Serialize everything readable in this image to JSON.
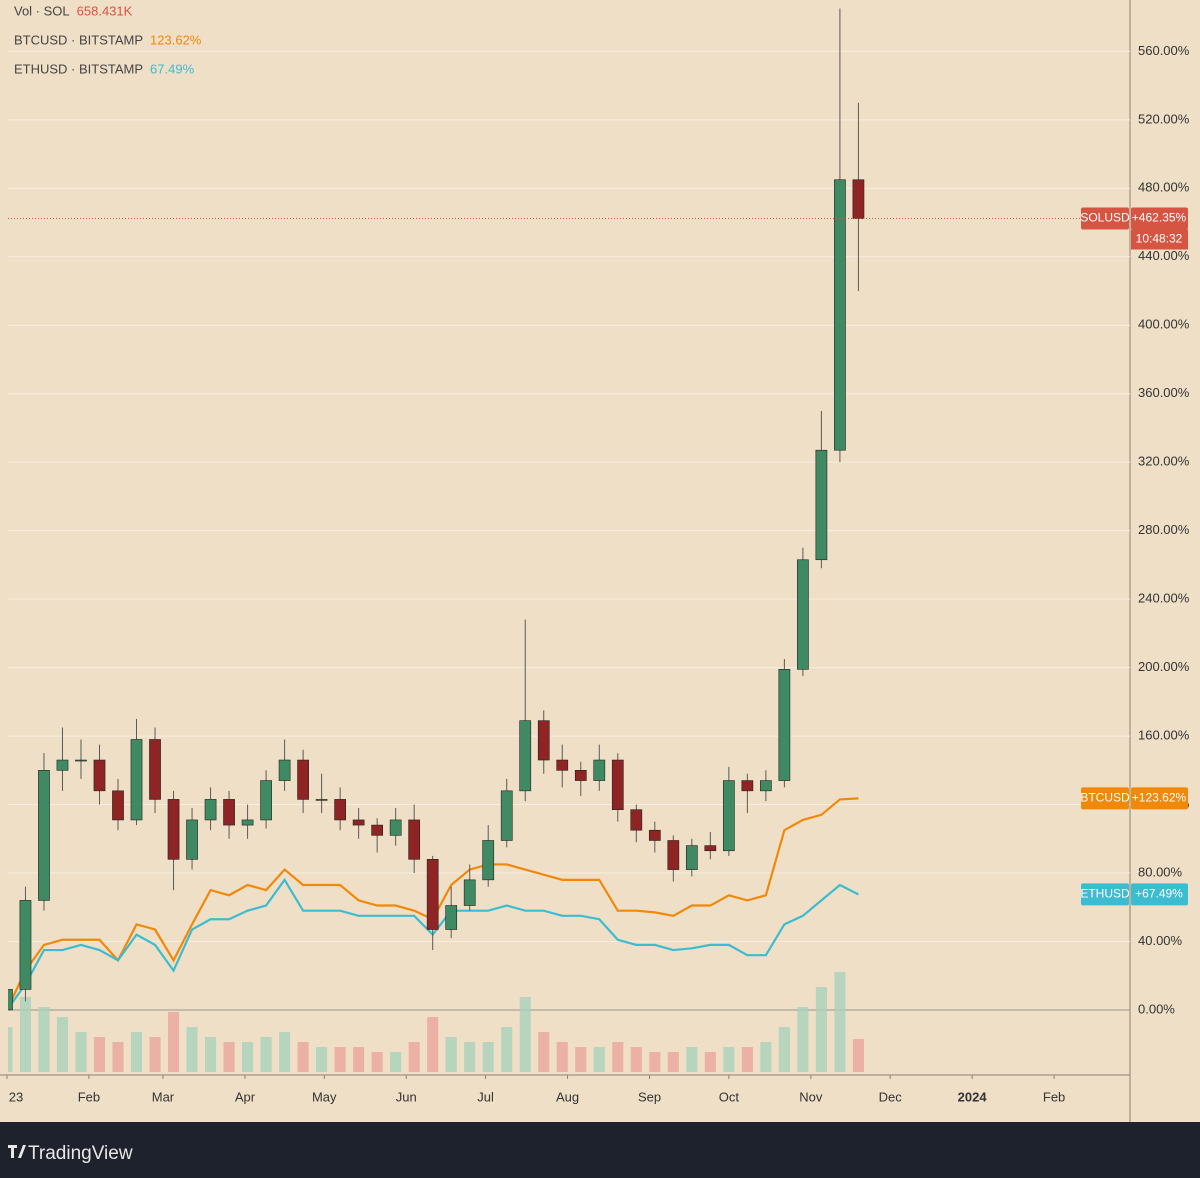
{
  "chart_data": {
    "type": "candlestick",
    "x": [
      0,
      7,
      14,
      21,
      28,
      35,
      42,
      49,
      56,
      63,
      70,
      77,
      84,
      91,
      98,
      105,
      112,
      119,
      126,
      133,
      140,
      147,
      154,
      161,
      168,
      175,
      182,
      189,
      196,
      203,
      210,
      217,
      224,
      231,
      238,
      245,
      252,
      259,
      266,
      273,
      280,
      287,
      294,
      301,
      308,
      315,
      322
    ],
    "xlim": [
      0.4,
      424.7
    ],
    "xticks": [
      {
        "value": 0,
        "label": "23"
      },
      {
        "value": 31,
        "label": "Feb"
      },
      {
        "value": 59,
        "label": "Mar"
      },
      {
        "value": 90,
        "label": "Apr"
      },
      {
        "value": 120,
        "label": "May"
      },
      {
        "value": 151,
        "label": "Jun"
      },
      {
        "value": 181,
        "label": "Jul"
      },
      {
        "value": 212,
        "label": "Aug"
      },
      {
        "value": 243,
        "label": "Sep"
      },
      {
        "value": 273,
        "label": "Oct"
      },
      {
        "value": 304,
        "label": "Nov"
      },
      {
        "value": 334,
        "label": "Dec"
      },
      {
        "value": 365,
        "label": "2024"
      },
      {
        "value": 396,
        "label": "Feb"
      }
    ],
    "ylim": [
      -38,
      590
    ],
    "yticks": [
      {
        "value": 0,
        "label": "0.00%"
      },
      {
        "value": 40,
        "label": "40.00%"
      },
      {
        "value": 80,
        "label": "80.00%"
      },
      {
        "value": 120,
        "label": "120.00%"
      },
      {
        "value": 160,
        "label": "160.00%"
      },
      {
        "value": 200,
        "label": "200.00%"
      },
      {
        "value": 240,
        "label": "240.00%"
      },
      {
        "value": 280,
        "label": "280.00%"
      },
      {
        "value": 320,
        "label": "320.00%"
      },
      {
        "value": 360,
        "label": "360.00%"
      },
      {
        "value": 400,
        "label": "400.00%"
      },
      {
        "value": 440,
        "label": "440.00%"
      },
      {
        "value": 480,
        "label": "480.00%"
      },
      {
        "value": 520,
        "label": "520.00%"
      },
      {
        "value": 560,
        "label": "560.00%"
      }
    ],
    "grid": true,
    "candles": {
      "name": "SOLUSD",
      "badge_label": "+462.35%",
      "countdown": "10:48:32",
      "up_color": "#3f8a62",
      "down_color": "#8e2424",
      "badge_color": "#d65442",
      "open": [
        0,
        12,
        64,
        140,
        146,
        146,
        128,
        111,
        158,
        123,
        88,
        111,
        123,
        108,
        111,
        134,
        146,
        123,
        123,
        111,
        108,
        102,
        111,
        88,
        47,
        61,
        76,
        99,
        128,
        169,
        146,
        140,
        134,
        146,
        117,
        105,
        99,
        82,
        96,
        93,
        134,
        128,
        134,
        199,
        263,
        327,
        485
      ],
      "high": [
        20,
        72,
        150,
        165,
        158,
        155,
        135,
        170,
        165,
        128,
        118,
        130,
        128,
        120,
        140,
        158,
        152,
        138,
        130,
        118,
        112,
        118,
        120,
        90,
        72,
        85,
        108,
        135,
        228,
        175,
        155,
        145,
        155,
        150,
        120,
        110,
        102,
        100,
        104,
        142,
        138,
        140,
        205,
        270,
        350,
        585,
        530
      ],
      "low": [
        -2,
        5,
        58,
        128,
        135,
        120,
        105,
        108,
        115,
        70,
        82,
        105,
        100,
        100,
        106,
        128,
        115,
        115,
        105,
        100,
        92,
        96,
        80,
        35,
        42,
        58,
        72,
        95,
        122,
        138,
        130,
        125,
        128,
        110,
        98,
        92,
        75,
        78,
        88,
        90,
        115,
        122,
        130,
        195,
        258,
        320,
        420
      ],
      "close": [
        12,
        64,
        140,
        146,
        146,
        128,
        111,
        158,
        123,
        88,
        111,
        123,
        108,
        111,
        134,
        146,
        123,
        123,
        111,
        108,
        102,
        111,
        88,
        47,
        61,
        76,
        99,
        128,
        169,
        146,
        140,
        134,
        146,
        117,
        105,
        99,
        82,
        96,
        93,
        134,
        128,
        134,
        199,
        263,
        327,
        485,
        462.35
      ]
    },
    "series": [
      {
        "name": "BTCUSD · BITSTAMP",
        "ticker": "BTCUSD",
        "legend_label": "123.62%",
        "badge_label": "+123.62%",
        "color": "#f0880a",
        "values": [
          0,
          23,
          38,
          41,
          41,
          41,
          29,
          50,
          47,
          29,
          50,
          70,
          67,
          73,
          70,
          82,
          73,
          73,
          73,
          64,
          61,
          61,
          58,
          53,
          73,
          82,
          85,
          85,
          82,
          79,
          76,
          76,
          76,
          58,
          58,
          57,
          55,
          61,
          61,
          67,
          64,
          67,
          105,
          111,
          114,
          123,
          123.62
        ]
      },
      {
        "name": "ETHUSD · BITSTAMP",
        "ticker": "ETHUSD",
        "legend_label": "67.49%",
        "badge_label": "+67.49%",
        "color": "#3cbcd0",
        "values": [
          0,
          15,
          35,
          35,
          38,
          35,
          29,
          44,
          38,
          23,
          47,
          53,
          53,
          58,
          61,
          76,
          58,
          58,
          58,
          55,
          55,
          55,
          55,
          44,
          58,
          58,
          58,
          61,
          58,
          58,
          55,
          55,
          53,
          41,
          38,
          38,
          35,
          36,
          38,
          38,
          32,
          32,
          50,
          55,
          64,
          73,
          67.49
        ]
      }
    ],
    "volume": {
      "name": "Vol · SOL",
      "up_color": "#a9d1ba",
      "down_color": "#eaa59c",
      "values": [
        900,
        1500,
        1300,
        1100,
        800,
        700,
        600,
        800,
        700,
        1200,
        900,
        700,
        600,
        600,
        700,
        800,
        600,
        500,
        500,
        500,
        400,
        400,
        600,
        1100,
        700,
        600,
        600,
        900,
        1500,
        800,
        600,
        500,
        500,
        600,
        500,
        400,
        400,
        500,
        400,
        500,
        500,
        600,
        900,
        1300,
        1700,
        2000,
        658.431
      ],
      "value_labels": [
        null,
        null,
        null,
        null,
        null,
        null,
        null,
        null,
        null,
        null,
        null,
        null,
        null,
        null,
        null,
        null,
        null,
        null,
        null,
        null,
        null,
        null,
        null,
        null,
        null,
        null,
        null,
        null,
        null,
        null,
        null,
        null,
        null,
        null,
        null,
        null,
        null,
        null,
        null,
        null,
        null,
        null,
        null,
        null,
        null,
        null,
        "658.431K"
      ]
    },
    "brand": "TradingView"
  }
}
